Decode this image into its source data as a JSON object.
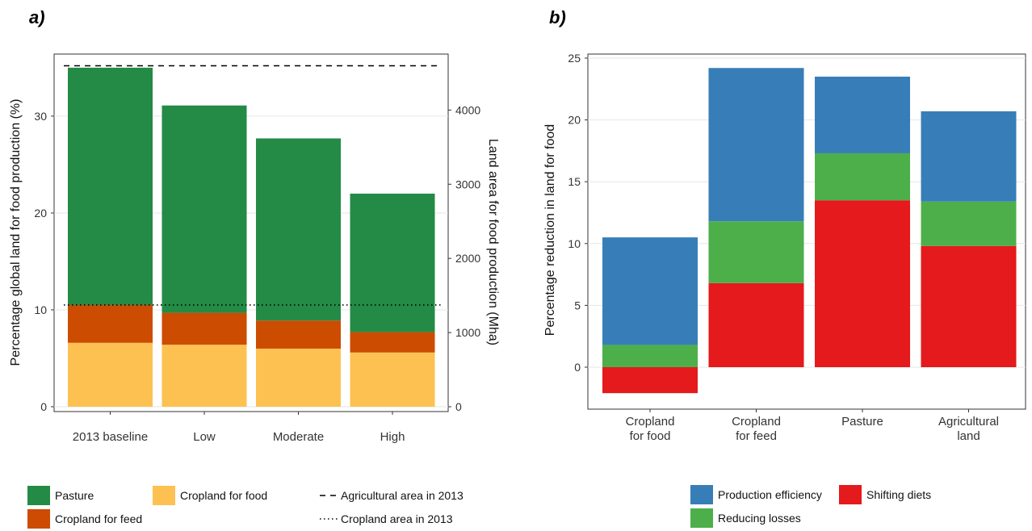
{
  "chart_data": [
    {
      "type": "bar",
      "stacked": true,
      "panel_label": "a)",
      "categories": [
        "2013 baseline",
        "Low",
        "Moderate",
        "High"
      ],
      "series": [
        {
          "name": "Cropland for food",
          "color": "#fdc151",
          "values": [
            6.6,
            6.4,
            6.0,
            5.6
          ]
        },
        {
          "name": "Cropland for feed",
          "color": "#cc4c02",
          "values": [
            3.9,
            3.3,
            2.9,
            2.1
          ]
        },
        {
          "name": "Pasture",
          "color": "#238b45",
          "values": [
            24.5,
            21.4,
            18.8,
            14.3
          ]
        }
      ],
      "reference_lines": [
        {
          "name": "Agricultural area in 2013",
          "style": "dashed",
          "value": 35.2
        },
        {
          "name": "Cropland area in 2013",
          "style": "dotted",
          "value": 10.5
        }
      ],
      "ylabel": "Percentage global land for food production (%)",
      "ylabel_right": "Land area for food production (Mha)",
      "ylim": [
        0,
        36.5
      ],
      "yticks": [
        0,
        10,
        20,
        30
      ],
      "yticks_right": [
        0,
        1000,
        2000,
        3000,
        4000
      ],
      "right_axis_per_percent": 130.6,
      "grid": "horizontal",
      "legend": "bottom"
    },
    {
      "type": "bar",
      "stacked": true,
      "panel_label": "b)",
      "categories": [
        "Cropland\nfor food",
        "Cropland\nfor feed",
        "Pasture",
        "Agricultural\nland"
      ],
      "series": [
        {
          "name": "Shifting diets",
          "color": "#e41a1c",
          "values": [
            -2.1,
            6.8,
            13.5,
            9.8
          ]
        },
        {
          "name": "Reducing losses",
          "color": "#4daf4a",
          "values": [
            1.8,
            5.0,
            3.8,
            3.6
          ]
        },
        {
          "name": "Production efficiency",
          "color": "#377eb8",
          "values": [
            8.7,
            12.4,
            6.2,
            7.3
          ]
        }
      ],
      "ylabel": "Percentage reduction in land for food",
      "ylim": [
        -3.3,
        25.5
      ],
      "yticks": [
        0,
        5,
        10,
        15,
        20,
        25
      ],
      "grid": "horizontal",
      "legend": "bottom"
    }
  ],
  "legend_a": {
    "pasture": "Pasture",
    "cropland_food": "Cropland for food",
    "agri_line": "Agricultural area in 2013",
    "cropland_feed": "Cropland for feed",
    "cropland_line": "Cropland area in 2013"
  },
  "legend_b": {
    "production": "Production efficiency",
    "shifting": "Shifting diets",
    "reducing": "Reducing losses"
  }
}
